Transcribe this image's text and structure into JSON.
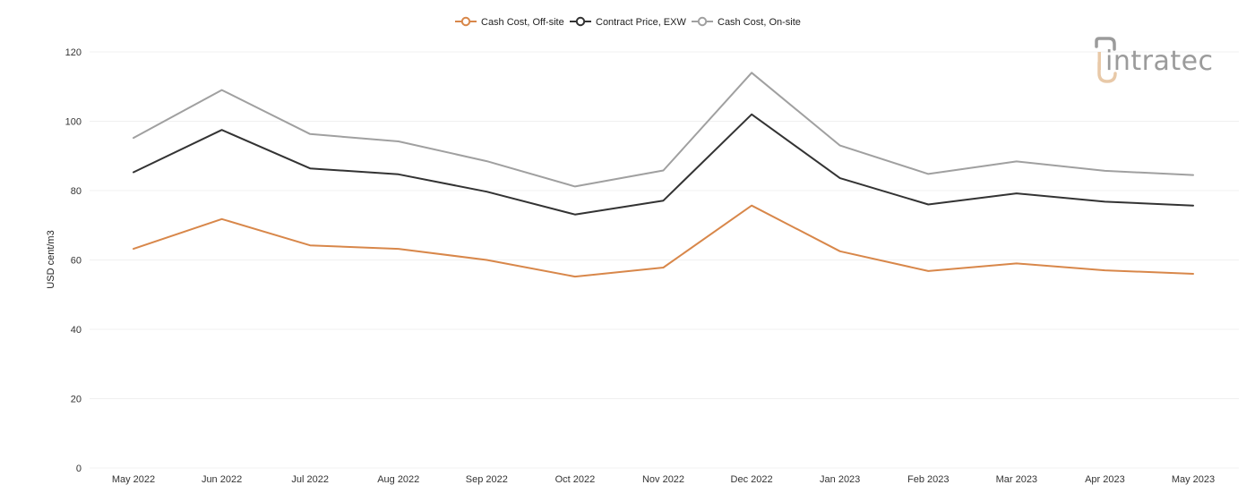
{
  "chart_data": {
    "type": "line",
    "categories": [
      "May 2022",
      "Jun 2022",
      "Jul 2022",
      "Aug 2022",
      "Sep 2022",
      "Oct 2022",
      "Nov 2022",
      "Dec 2022",
      "Jan 2023",
      "Feb 2023",
      "Mar 2023",
      "Apr 2023",
      "May 2023"
    ],
    "series": [
      {
        "name": "Cash Cost, Off-site",
        "color": "#d8874a",
        "values": [
          63.2,
          71.8,
          64.2,
          63.2,
          60.0,
          55.2,
          57.8,
          75.7,
          62.5,
          56.8,
          59.0,
          57.0,
          56.0
        ]
      },
      {
        "name": "Contract Price, EXW",
        "color": "#333333",
        "values": [
          85.3,
          97.5,
          86.4,
          84.7,
          79.7,
          73.1,
          77.1,
          102.0,
          83.6,
          76.0,
          79.2,
          76.8,
          75.7
        ]
      },
      {
        "name": "Cash Cost, On-site",
        "color": "#a0a0a0",
        "values": [
          95.2,
          109.0,
          96.3,
          94.2,
          88.5,
          81.2,
          85.8,
          114.0,
          93.0,
          84.8,
          88.4,
          85.7,
          84.5
        ]
      }
    ],
    "ylabel": "USD cent/m3",
    "xlabel": "",
    "ylim": [
      0,
      120
    ],
    "yticks": [
      0,
      20,
      40,
      60,
      80,
      100,
      120
    ],
    "grid": true,
    "legend_position": "top-center"
  },
  "watermark": {
    "text": "intratec",
    "icon": "intratec-logo-icon",
    "text_color": "#9b9b9b",
    "accent_color": "#e8c9a8"
  }
}
